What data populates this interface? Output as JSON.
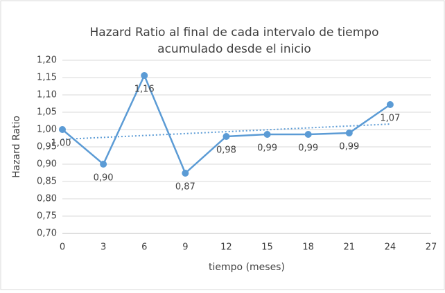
{
  "chart_data": {
    "type": "line",
    "title": [
      "Hazard Ratio al final de cada intervalo de tiempo",
      "acumulado desde el inicio"
    ],
    "x_label": "tiempo (meses)",
    "y_label": "Hazard Ratio",
    "x": [
      0,
      3,
      6,
      9,
      12,
      15,
      18,
      21,
      24
    ],
    "series": [
      {
        "name": "Hazard Ratio",
        "color": "#5b9bd5",
        "values": [
          1.0,
          0.9,
          1.156,
          0.874,
          0.98,
          0.986,
          0.986,
          0.99,
          1.072
        ],
        "value_labels": [
          "1,00",
          "0,90",
          "1,16",
          "0,87",
          "0,98",
          "0,99",
          "0,99",
          "0,99",
          "1,07"
        ]
      }
    ],
    "trendline": "linear",
    "xlim": [
      0,
      27
    ],
    "xticks": [
      0,
      3,
      6,
      9,
      12,
      15,
      18,
      21,
      24,
      27
    ],
    "ylim": [
      0.7,
      1.2
    ],
    "yticks": [
      {
        "value": 0.7,
        "label": "0,70"
      },
      {
        "value": 0.75,
        "label": "0,75"
      },
      {
        "value": 0.8,
        "label": "0,80"
      },
      {
        "value": 0.85,
        "label": "0,85"
      },
      {
        "value": 0.9,
        "label": "0,90"
      },
      {
        "value": 0.95,
        "label": "0,95"
      },
      {
        "value": 1.0,
        "label": "1,00"
      },
      {
        "value": 1.05,
        "label": "1,05"
      },
      {
        "value": 1.1,
        "label": "1,10"
      },
      {
        "value": 1.15,
        "label": "1,15"
      },
      {
        "value": 1.2,
        "label": "1,20"
      }
    ],
    "grid": true
  }
}
